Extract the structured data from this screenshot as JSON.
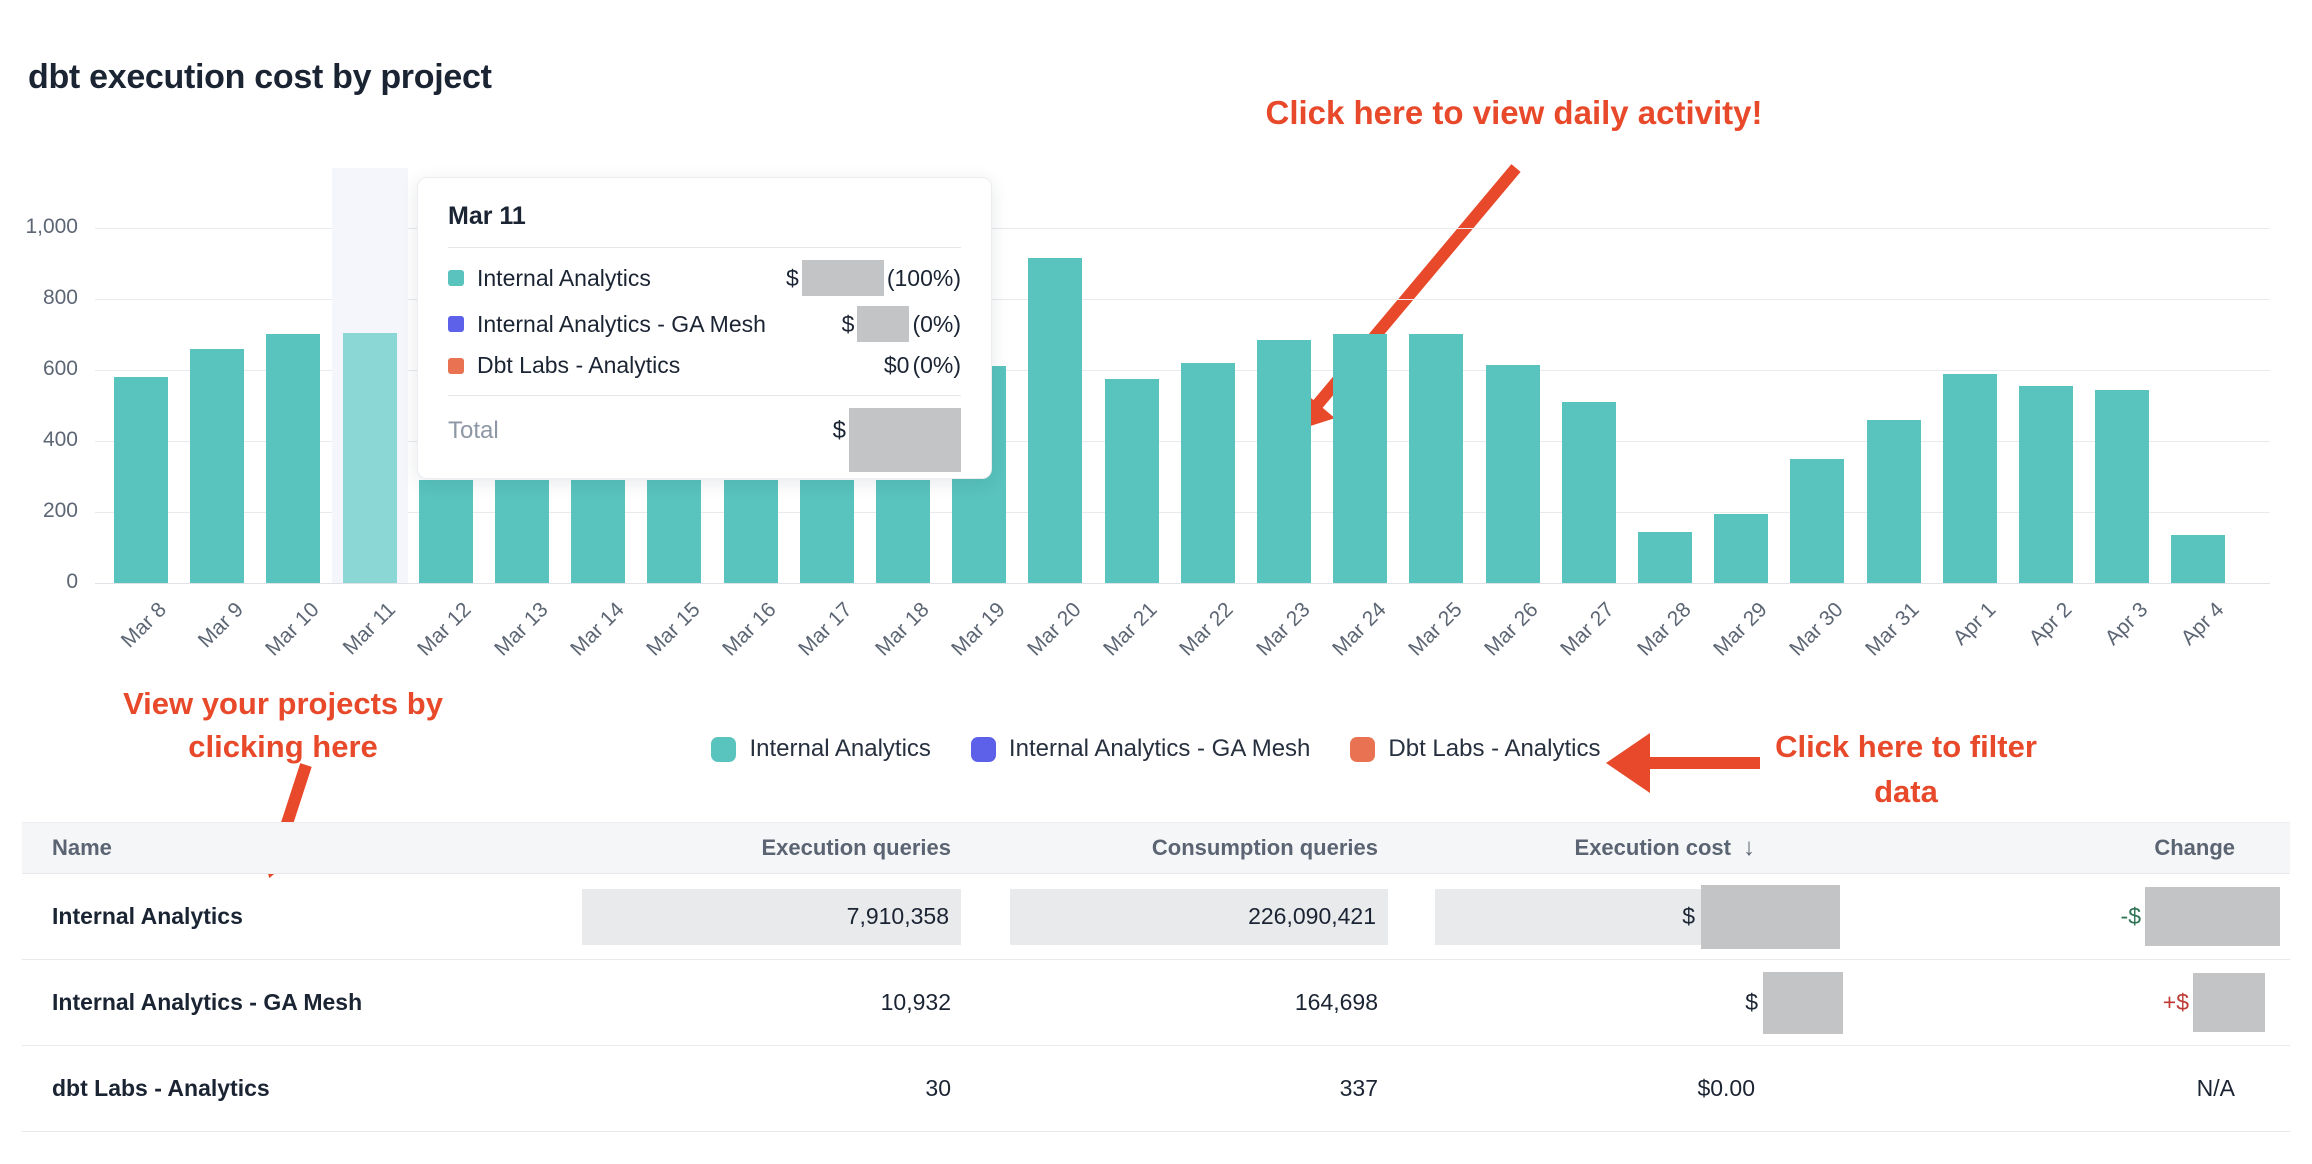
{
  "page": {
    "title": "dbt execution cost by project"
  },
  "annotations": {
    "daily": "Click here to view daily activity!",
    "projects_line1": "View your projects by",
    "projects_line2": "clicking here",
    "filter_line1": "Click here to filter",
    "filter_line2": "data",
    "color": "#e8492a"
  },
  "chart_data": {
    "type": "bar",
    "title": "dbt execution cost by project",
    "categories": [
      "Mar 8",
      "Mar 9",
      "Mar 10",
      "Mar 11",
      "Mar 12",
      "Mar 13",
      "Mar 14",
      "Mar 15",
      "Mar 16",
      "Mar 17",
      "Mar 18",
      "Mar 19",
      "Mar 20",
      "Mar 21",
      "Mar 22",
      "Mar 23",
      "Mar 24",
      "Mar 25",
      "Mar 26",
      "Mar 27",
      "Mar 28",
      "Mar 29",
      "Mar 30",
      "Mar 31",
      "Apr 1",
      "Apr 2",
      "Apr 3",
      "Apr 4"
    ],
    "values": [
      580,
      660,
      700,
      705,
      290,
      290,
      290,
      290,
      290,
      290,
      290,
      610,
      915,
      575,
      620,
      685,
      700,
      700,
      615,
      510,
      145,
      195,
      350,
      460,
      590,
      555,
      545,
      135
    ],
    "xlabel": "",
    "ylabel": "",
    "ylim": [
      0,
      1000
    ],
    "ytick_labels": [
      "0",
      "200",
      "400",
      "600",
      "800",
      "1,000"
    ],
    "grid": true,
    "legend_position": "bottom",
    "bar_color": "#59c3bd",
    "highlighted_index": 3,
    "highlighted_bar_color": "#8bd7d6",
    "highlight_band_color": "#f4f6fb"
  },
  "tooltip": {
    "title": "Mar 11",
    "rows": [
      {
        "label": "Internal Analytics",
        "color": "#59c3bd",
        "value_prefix": "$",
        "redacted": true,
        "value_suffix": "(100%)"
      },
      {
        "label": "Internal Analytics - GA Mesh",
        "color": "#5d60e8",
        "value_prefix": "$",
        "redacted": true,
        "value_suffix": "(0%)"
      },
      {
        "label": "Dbt Labs - Analytics",
        "color": "#e97253",
        "value_prefix": "$0",
        "redacted": false,
        "value_suffix": "(0%)"
      }
    ],
    "total_label": "Total",
    "total_prefix": "$",
    "total_redacted": true
  },
  "legend": {
    "items": [
      {
        "label": "Internal Analytics",
        "color": "#59c3bd"
      },
      {
        "label": "Internal Analytics - GA Mesh",
        "color": "#5d60e8"
      },
      {
        "label": "Dbt Labs - Analytics",
        "color": "#e97253"
      }
    ]
  },
  "table": {
    "columns": [
      "Name",
      "Execution queries",
      "Consumption queries",
      "Execution cost",
      "Change"
    ],
    "sort_column": "Execution cost",
    "sort_icon": "↓",
    "rows": [
      {
        "name": "Internal Analytics",
        "execution_queries": "7,910,358",
        "consumption_queries": "226,090,421",
        "cost_text": "$",
        "cost_redacted": true,
        "change_text": "-$",
        "change_redacted": true,
        "change_sign": "neg",
        "highlighted": true
      },
      {
        "name": "Internal Analytics - GA Mesh",
        "execution_queries": "10,932",
        "consumption_queries": "164,698",
        "cost_text": "$",
        "cost_redacted": true,
        "change_text": "+$",
        "change_redacted": true,
        "change_sign": "pos",
        "highlighted": false
      },
      {
        "name": "dbt Labs - Analytics",
        "execution_queries": "30",
        "consumption_queries": "337",
        "cost_text": "$0.00",
        "cost_redacted": false,
        "change_text": "N/A",
        "change_redacted": false,
        "change_sign": "none",
        "highlighted": false
      }
    ]
  }
}
